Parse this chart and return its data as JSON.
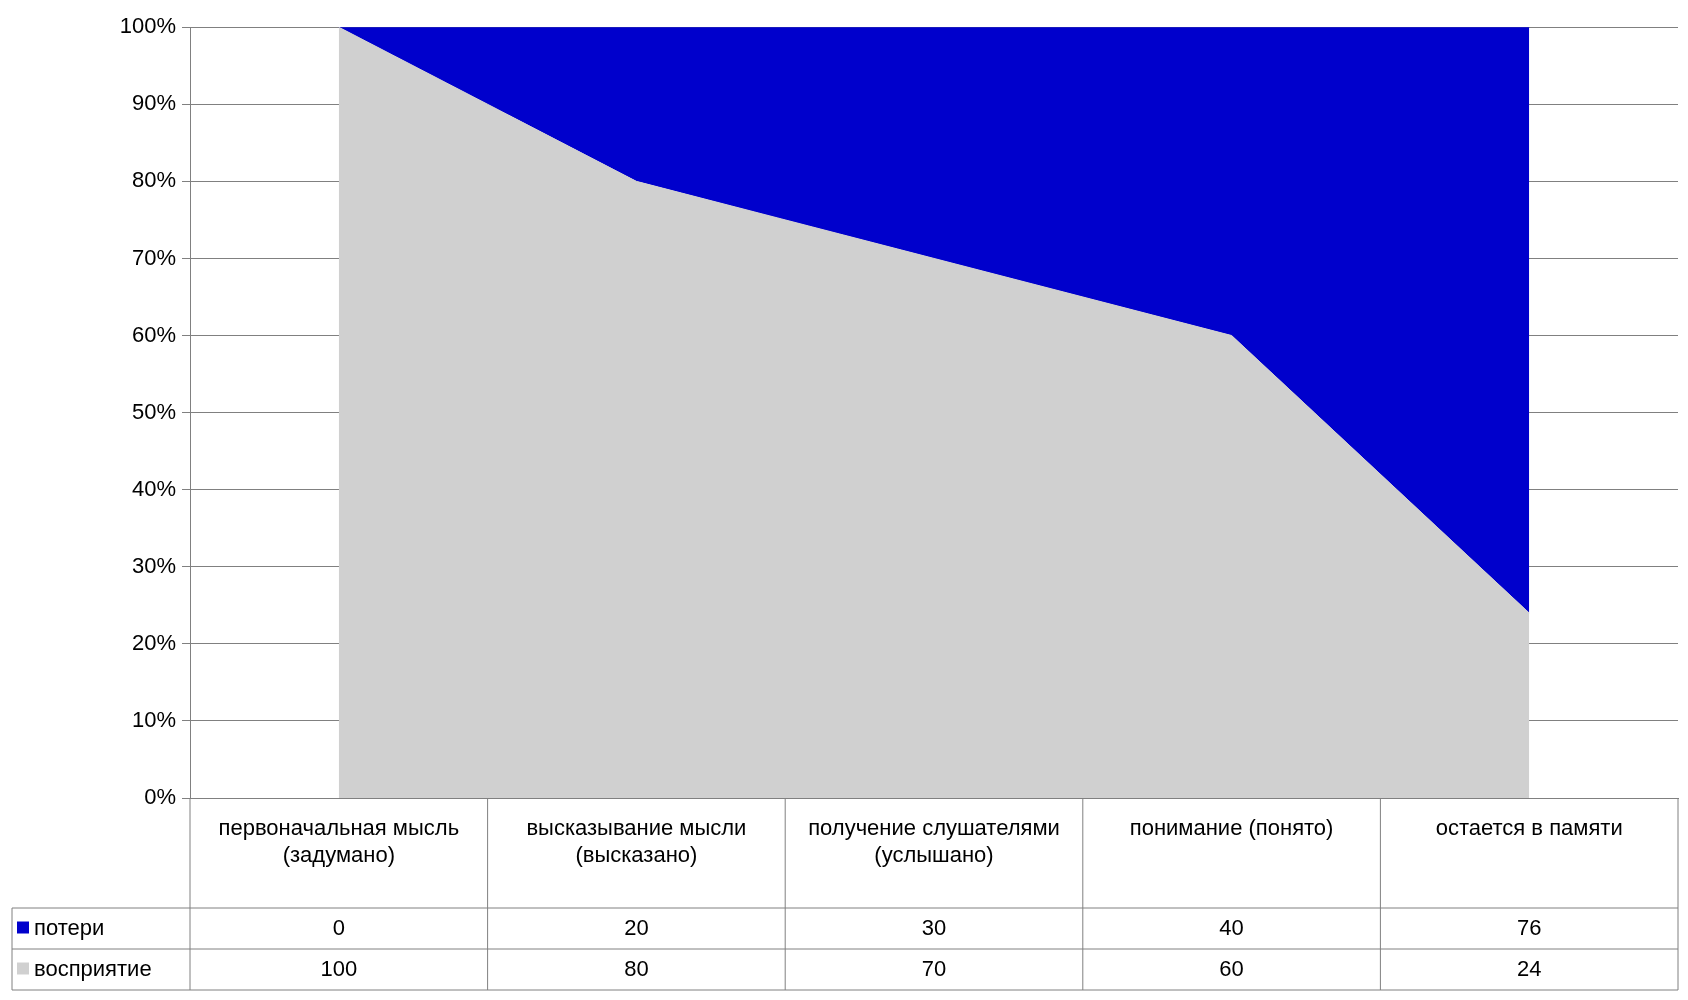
{
  "chart_data": {
    "type": "area",
    "stacked": true,
    "categories": [
      "первоначальная мысль (задумано)",
      "высказывание мысли (высказано)",
      "получение слушателями (услышано)",
      "понимание (понято)",
      "остается в памяти"
    ],
    "series": [
      {
        "name": "восприятие",
        "color": "#d0d0d0",
        "values": [
          100,
          80,
          70,
          60,
          24
        ]
      },
      {
        "name": "потери",
        "color": "#0000cc",
        "values": [
          0,
          20,
          30,
          40,
          76
        ]
      }
    ],
    "ylim": [
      0,
      100
    ],
    "yticks": [
      {
        "value": 0,
        "label": "0%"
      },
      {
        "value": 10,
        "label": "10%"
      },
      {
        "value": 20,
        "label": "20%"
      },
      {
        "value": 30,
        "label": "30%"
      },
      {
        "value": 40,
        "label": "40%"
      },
      {
        "value": 50,
        "label": "50%"
      },
      {
        "value": 60,
        "label": "60%"
      },
      {
        "value": 70,
        "label": "70%"
      },
      {
        "value": 80,
        "label": "80%"
      },
      {
        "value": 90,
        "label": "90%"
      },
      {
        "value": 100,
        "label": "100%"
      }
    ],
    "grid": "y",
    "legend": "bottom",
    "data_labels": true
  }
}
